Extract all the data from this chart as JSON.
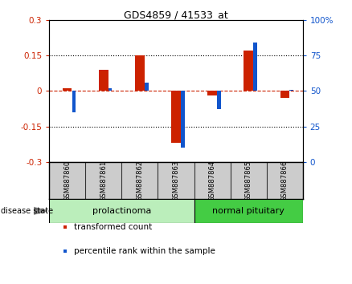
{
  "title": "GDS4859 / 41533_at",
  "samples": [
    "GSM887860",
    "GSM887861",
    "GSM887862",
    "GSM887863",
    "GSM887864",
    "GSM887865",
    "GSM887866"
  ],
  "transformed_count": [
    0.01,
    0.09,
    0.15,
    -0.22,
    -0.02,
    0.17,
    -0.03
  ],
  "percentile_rank": [
    35,
    52,
    56,
    10,
    37,
    84,
    51
  ],
  "ylim_left": [
    -0.3,
    0.3
  ],
  "ylim_right": [
    0,
    100
  ],
  "yticks_left": [
    -0.3,
    -0.15,
    0,
    0.15,
    0.3
  ],
  "yticks_right": [
    0,
    25,
    50,
    75,
    100
  ],
  "ytick_labels_left": [
    "-0.3",
    "-0.15",
    "0",
    "0.15",
    "0.3"
  ],
  "ytick_labels_right": [
    "0",
    "25",
    "50",
    "75",
    "100%"
  ],
  "dotted_lines": [
    -0.15,
    0.15
  ],
  "bar_color_red": "#cc2200",
  "bar_color_blue": "#1155cc",
  "disease_groups": [
    {
      "label": "prolactinoma",
      "samples": [
        0,
        1,
        2,
        3
      ],
      "color_light": "#bbeebb",
      "color_dark": "#44cc44"
    },
    {
      "label": "normal pituitary",
      "samples": [
        4,
        5,
        6
      ],
      "color_light": "#44dd44",
      "color_dark": "#44cc44"
    }
  ],
  "disease_state_label": "disease state",
  "legend_items": [
    {
      "label": "transformed count",
      "color": "#cc2200"
    },
    {
      "label": "percentile rank within the sample",
      "color": "#1155cc"
    }
  ],
  "red_bar_width": 0.25,
  "blue_bar_width": 0.1,
  "background_color": "#ffffff",
  "xlabel_box_color": "#cccccc",
  "xlabel_box_border": "#333333"
}
